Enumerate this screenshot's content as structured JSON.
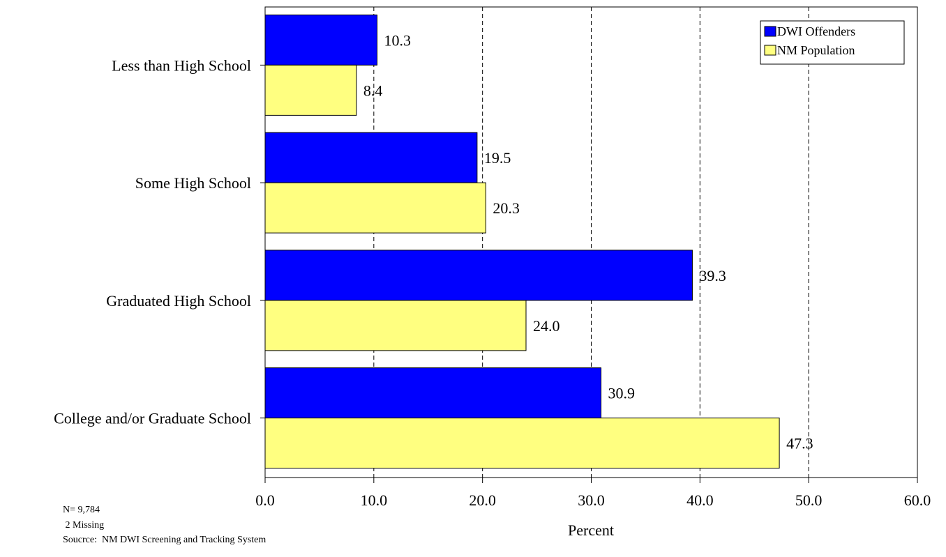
{
  "chart_data": {
    "type": "bar",
    "orientation": "horizontal",
    "categories": [
      "Less than High School",
      "Some High School",
      "Graduated High School",
      "College and/or Graduate School"
    ],
    "series": [
      {
        "name": "DWI Offenders",
        "color": "#0000ff",
        "values": [
          10.3,
          19.5,
          39.3,
          30.9
        ]
      },
      {
        "name": "NM Population",
        "color": "#ffff80",
        "values": [
          8.4,
          20.3,
          24.0,
          47.3
        ]
      }
    ],
    "value_labels": [
      [
        "10.3",
        "19.5",
        "39.3",
        "30.9"
      ],
      [
        "8.4",
        "20.3",
        "24.0",
        "47.3"
      ]
    ],
    "title": "",
    "xlabel": "Percent",
    "ylabel": "",
    "xlim": [
      0,
      60
    ],
    "xticks": [
      0,
      10,
      20,
      30,
      40,
      50,
      60
    ],
    "xtick_labels": [
      "0.0",
      "10.0",
      "20.0",
      "30.0",
      "40.0",
      "50.0",
      "60.0"
    ],
    "grid": "vertical dashed",
    "legend_position": "top-right"
  },
  "notes": {
    "n": "N= 9,784",
    "missing": " 2 Missing",
    "source": "Soucrce:  NM DWI Screening and Tracking System"
  }
}
